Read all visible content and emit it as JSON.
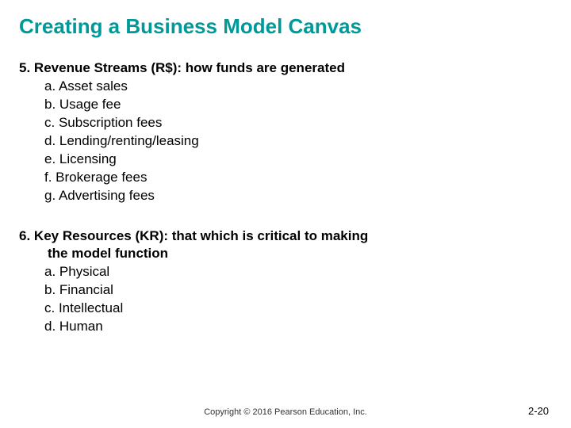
{
  "title": "Creating a Business Model Canvas",
  "title_color": "#009999",
  "section5": {
    "number": "5.",
    "heading": "Revenue Streams (R$): how funds are generated",
    "items": [
      "a. Asset sales",
      "b. Usage fee",
      "c. Subscription fees",
      "d. Lending/renting/leasing",
      "e. Licensing",
      "f. Brokerage fees",
      "g. Advertising fees"
    ]
  },
  "section6": {
    "number": "6.",
    "heading_line1": "Key Resources (KR): that which is critical to making",
    "heading_line2": "the model function",
    "items": [
      "a. Physical",
      "b. Financial",
      "c. Intellectual",
      "d. Human"
    ]
  },
  "copyright": "Copyright © 2016 Pearson Education, Inc.",
  "page_number": "2-20"
}
